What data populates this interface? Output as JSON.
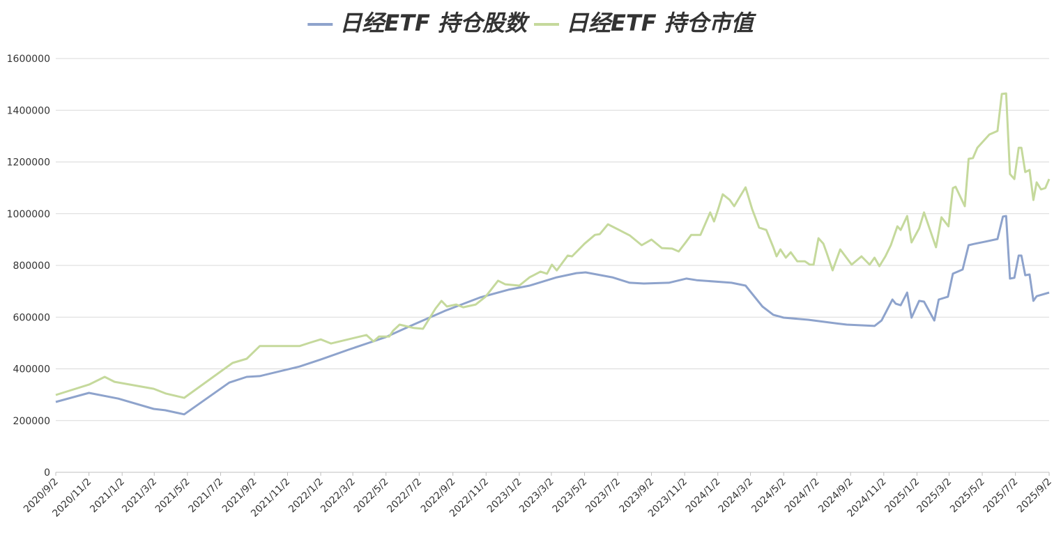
{
  "chart_data": {
    "type": "line",
    "xlim": [
      "2020/9/2",
      "2025/9/2"
    ],
    "xticks": [
      "2020/9/2",
      "2020/11/2",
      "2021/1/2",
      "2021/3/2",
      "2021/5/2",
      "2021/7/2",
      "2021/9/2",
      "2021/11/2",
      "2022/1/2",
      "2022/3/2",
      "2022/5/2",
      "2022/7/2",
      "2022/9/2",
      "2022/11/2",
      "2023/1/2",
      "2023/3/2",
      "2023/5/2",
      "2023/7/2",
      "2023/9/2",
      "2023/11/2",
      "2024/1/2",
      "2024/3/2",
      "2024/5/2",
      "2024/7/2",
      "2024/9/2",
      "2024/11/2",
      "2025/1/2",
      "2025/3/2",
      "2025/5/2",
      "2025/7/2",
      "2025/9/2"
    ],
    "ylim": [
      0,
      1600000
    ],
    "yticks": [
      0,
      200000,
      400000,
      600000,
      800000,
      1000000,
      1200000,
      1400000,
      1600000
    ],
    "grid": true,
    "legend": "top",
    "series": [
      {
        "name": "日经ETF 持仓股数",
        "color": "#8ea3cc",
        "x": [
          "2020/9/2",
          "2020/11/2",
          "2020/12/26",
          "2021/3/1",
          "2021/3/22",
          "2021/4/26",
          "2021/7/18",
          "2021/8/19",
          "2021/9/12",
          "2021/11/24",
          "2022/1/2",
          "2022/2/22",
          "2022/4/1",
          "2022/5/2",
          "2022/6/16",
          "2022/8/19",
          "2022/10/22",
          "2022/12/13",
          "2023/1/21",
          "2023/3/12",
          "2023/4/17",
          "2023/5/4",
          "2023/6/22",
          "2023/7/24",
          "2023/8/19",
          "2023/10/4",
          "2023/11/5",
          "2023/11/24",
          "2024/1/27",
          "2024/2/22",
          "2024/3/24",
          "2024/4/13",
          "2024/5/2",
          "2024/6/16",
          "2024/8/7",
          "2024/8/26",
          "2024/10/16",
          "2024/10/29",
          "2024/11/18",
          "2024/11/24",
          "2024/12/3",
          "2024/12/15",
          "2024/12/23",
          "2025/1/6",
          "2025/1/15",
          "2025/2/3",
          "2025/2/11",
          "2025/2/28",
          "2025/3/9",
          "2025/3/27",
          "2025/4/7",
          "2025/4/19",
          "2025/5/8",
          "2025/5/30",
          "2025/6/9",
          "2025/6/15",
          "2025/6/22",
          "2025/6/30",
          "2025/7/8",
          "2025/7/13",
          "2025/7/20",
          "2025/7/28",
          "2025/8/4",
          "2025/8/10",
          "2025/9/2"
        ],
        "values": [
          272000,
          307000,
          285000,
          245000,
          240000,
          224000,
          347000,
          369000,
          372000,
          409000,
          436000,
          474000,
          501000,
          523000,
          566000,
          625000,
          676000,
          706000,
          722000,
          754000,
          770000,
          773000,
          754000,
          733000,
          730000,
          733000,
          749000,
          743000,
          733000,
          722000,
          641000,
          609000,
          598000,
          590000,
          576000,
          571000,
          566000,
          587000,
          668000,
          652000,
          646000,
          695000,
          598000,
          663000,
          660000,
          587000,
          668000,
          679000,
          768000,
          784000,
          878000,
          884000,
          892000,
          902000,
          989000,
          991000,
          749000,
          752000,
          838000,
          838000,
          762000,
          765000,
          663000,
          681000,
          695000
        ]
      },
      {
        "name": "日经ETF 持仓市值",
        "color": "#c5d99c",
        "x": [
          "2020/9/2",
          "2020/11/2",
          "2020/12/1",
          "2020/12/19",
          "2021/3/1",
          "2021/3/24",
          "2021/4/26",
          "2021/7/24",
          "2021/8/19",
          "2021/9/12",
          "2021/11/24",
          "2021/12/13",
          "2022/1/2",
          "2022/1/21",
          "2022/3/27",
          "2022/4/9",
          "2022/4/19",
          "2022/5/8",
          "2022/5/15",
          "2022/5/27",
          "2022/6/22",
          "2022/7/9",
          "2022/8/1",
          "2022/8/12",
          "2022/8/22",
          "2022/9/8",
          "2022/9/21",
          "2022/10/14",
          "2022/11/1",
          "2022/11/24",
          "2022/12/7",
          "2023/1/2",
          "2023/1/21",
          "2023/2/10",
          "2023/2/22",
          "2023/3/3",
          "2023/3/12",
          "2023/4/1",
          "2023/4/9",
          "2023/5/2",
          "2023/5/21",
          "2023/5/30",
          "2023/6/14",
          "2023/7/14",
          "2023/7/24",
          "2023/8/15",
          "2023/9/2",
          "2023/9/21",
          "2023/10/10",
          "2023/10/22",
          "2023/11/5",
          "2023/11/14",
          "2023/12/1",
          "2023/12/19",
          "2023/12/26",
          "2024/1/2",
          "2024/1/11",
          "2024/1/24",
          "2024/2/1",
          "2024/2/22",
          "2024/3/5",
          "2024/3/18",
          "2024/3/31",
          "2024/4/13",
          "2024/4/19",
          "2024/4/26",
          "2024/5/6",
          "2024/5/15",
          "2024/5/27",
          "2024/6/10",
          "2024/6/19",
          "2024/6/26",
          "2024/7/5",
          "2024/7/14",
          "2024/7/20",
          "2024/7/31",
          "2024/8/14",
          "2024/9/4",
          "2024/9/22",
          "2024/10/7",
          "2024/10/16",
          "2024/10/25",
          "2024/11/5",
          "2024/11/15",
          "2024/11/27",
          "2024/12/3",
          "2024/12/15",
          "2024/12/23",
          "2025/1/6",
          "2025/1/15",
          "2025/2/6",
          "2025/2/16",
          "2025/3/1",
          "2025/3/9",
          "2025/3/14",
          "2025/3/31",
          "2025/4/7",
          "2025/4/15",
          "2025/4/23",
          "2025/5/15",
          "2025/5/30",
          "2025/6/7",
          "2025/6/15",
          "2025/6/22",
          "2025/6/30",
          "2025/7/8",
          "2025/7/13",
          "2025/7/20",
          "2025/7/28",
          "2025/8/4",
          "2025/8/10",
          "2025/8/18",
          "2025/8/26",
          "2025/9/2"
        ],
        "values": [
          299000,
          339000,
          369000,
          350000,
          323000,
          304000,
          288000,
          423000,
          439000,
          488000,
          488000,
          501000,
          514000,
          498000,
          531000,
          506000,
          525000,
          525000,
          547000,
          571000,
          558000,
          555000,
          633000,
          663000,
          641000,
          649000,
          638000,
          649000,
          679000,
          741000,
          727000,
          722000,
          754000,
          776000,
          768000,
          803000,
          781000,
          838000,
          835000,
          884000,
          918000,
          921000,
          959000,
          927000,
          916000,
          878000,
          900000,
          867000,
          865000,
          854000,
          892000,
          918000,
          918000,
          1005000,
          970000,
          1013000,
          1075000,
          1053000,
          1029000,
          1102000,
          1018000,
          946000,
          937000,
          870000,
          835000,
          862000,
          830000,
          851000,
          816000,
          816000,
          803000,
          803000,
          905000,
          884000,
          849000,
          781000,
          862000,
          803000,
          835000,
          803000,
          830000,
          797000,
          835000,
          878000,
          951000,
          937000,
          991000,
          889000,
          943000,
          1005000,
          870000,
          986000,
          951000,
          1099000,
          1104000,
          1029000,
          1212000,
          1215000,
          1255000,
          1306000,
          1320000,
          1463000,
          1465000,
          1153000,
          1134000,
          1255000,
          1255000,
          1161000,
          1169000,
          1053000,
          1121000,
          1094000,
          1099000,
          1134000
        ]
      }
    ]
  }
}
